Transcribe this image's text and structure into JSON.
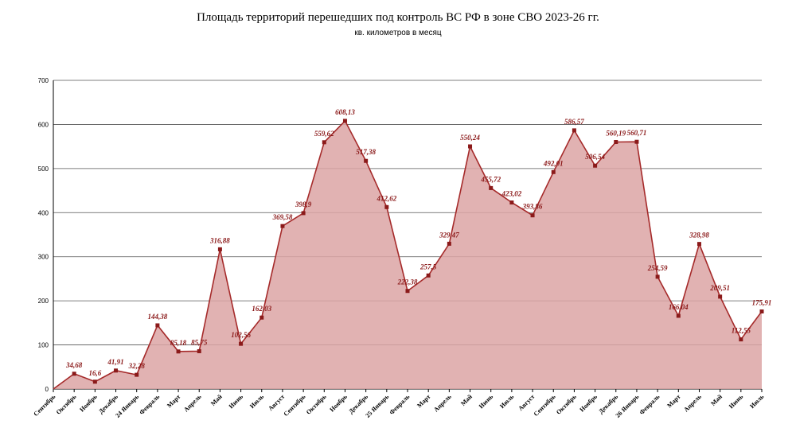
{
  "chart_data": {
    "type": "area",
    "title": "Площадь территорий перешедших под контроль ВС РФ в зоне СВО 2023-26 гг.",
    "subtitle": "кв. километров в месяц",
    "ylim": [
      0,
      700
    ],
    "yticks": [
      0,
      100,
      200,
      300,
      400,
      500,
      600,
      700
    ],
    "grid": true,
    "colors": {
      "line": "#a52a2a",
      "fill": "#dca5a5",
      "marker": "#8b1a1a",
      "label": "#8b1a1a"
    },
    "categories": [
      "Сентябрь",
      "Октябрь",
      "Ноябрь",
      "Декабрь",
      "24 Январь",
      "Февраль",
      "Март",
      "Апрель",
      "Май",
      "Июнь",
      "Июль",
      "Август",
      "Сентябрь",
      "Октябрь",
      "Ноябрь",
      "Декабрь",
      "25 Январь",
      "Февраль",
      "Март",
      "Апрель",
      "Май",
      "Июнь",
      "Июль",
      "Август",
      "Сентябрь",
      "Октябрь",
      "Ноябрь",
      "Декабрь",
      "26 Январь",
      "Февраль",
      "Март",
      "Апрель",
      "Май",
      "Июнь",
      "Июль"
    ],
    "values": [
      0,
      34.68,
      16.6,
      41.91,
      32.28,
      144.38,
      85.18,
      85.75,
      316.88,
      102.56,
      162.03,
      369.58,
      398.9,
      559.62,
      608.13,
      517.38,
      412.62,
      222.38,
      257.5,
      329.47,
      550.24,
      455.72,
      423.02,
      393.86,
      492.01,
      586.57,
      506.54,
      560.19,
      560.71,
      254.59,
      166.04,
      328.98,
      209.51,
      112.55,
      175.91
    ],
    "data_labels": [
      null,
      "34,68",
      "16,6",
      "41,91",
      "32,28",
      "144,38",
      "85,18",
      "85,75",
      "316,88",
      "102,56",
      "162,03",
      "369,58",
      "398,9",
      "559,62",
      "608,13",
      "517,38",
      "412,62",
      "222,38",
      "257,5",
      "329,47",
      "550,24",
      "455,72",
      "423,02",
      "393,86",
      "492,01",
      "586,57",
      "506,54",
      "560,19",
      "560,71",
      "254,59",
      "166,04",
      "328,98",
      "209,51",
      "112,55",
      "175,91"
    ]
  }
}
